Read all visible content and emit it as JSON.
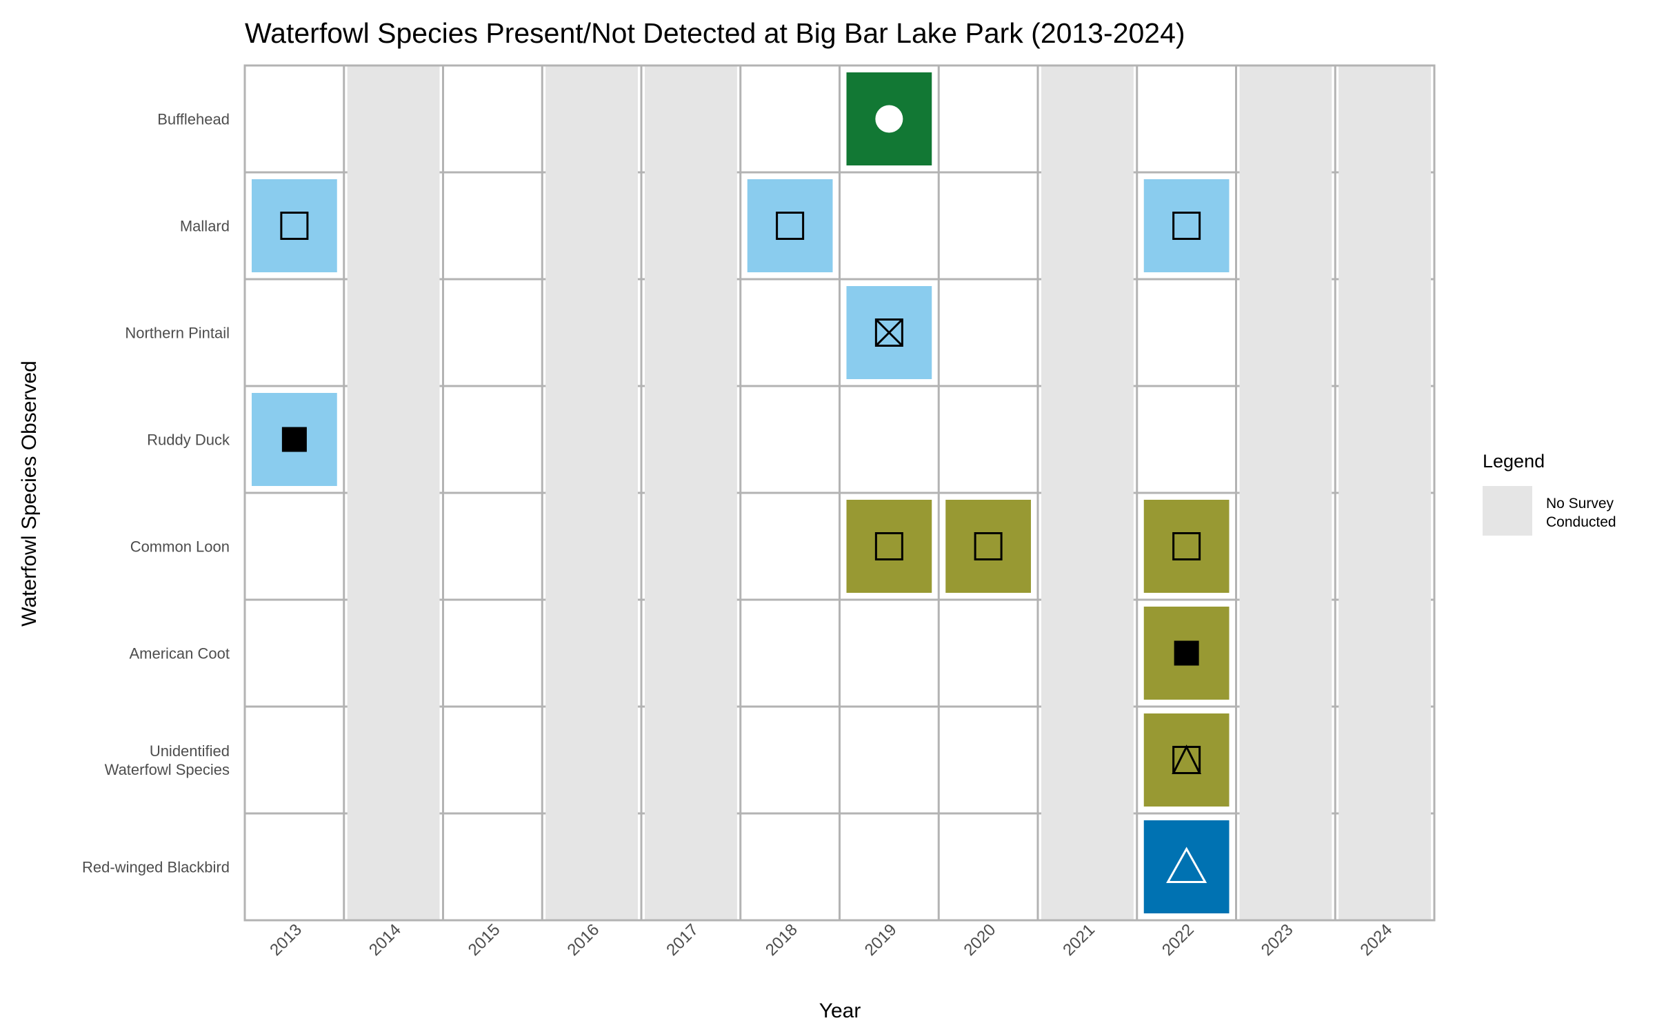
{
  "chart_data": {
    "type": "heatmap",
    "title": "Waterfowl Species Present/Not Detected at Big Bar Lake Park (2013-2024)",
    "xlabel": "Year",
    "ylabel": "Waterfowl Species Observed",
    "years": [
      "2013",
      "2014",
      "2015",
      "2016",
      "2017",
      "2018",
      "2019",
      "2020",
      "2021",
      "2022",
      "2023",
      "2024"
    ],
    "no_survey_years": [
      "2014",
      "2016",
      "2017",
      "2021",
      "2023",
      "2024"
    ],
    "species": [
      {
        "name": [
          "Bufflehead"
        ]
      },
      {
        "name": [
          "Mallard"
        ]
      },
      {
        "name": [
          "Northern Pintail"
        ]
      },
      {
        "name": [
          "Ruddy Duck"
        ]
      },
      {
        "name": [
          "Common Loon"
        ]
      },
      {
        "name": [
          "American Coot"
        ]
      },
      {
        "name": [
          "Unidentified",
          "Waterfowl Species"
        ]
      },
      {
        "name": [
          "Red-winged Blackbird"
        ]
      }
    ],
    "observations": [
      {
        "species": 0,
        "year": "2019",
        "color": "#127834",
        "marker": "circle-filled",
        "marker_color": "#ffffff"
      },
      {
        "species": 1,
        "year": "2013",
        "color": "#8ACCEE",
        "marker": "square-open",
        "marker_color": "#000000"
      },
      {
        "species": 1,
        "year": "2018",
        "color": "#8ACCEE",
        "marker": "square-open",
        "marker_color": "#000000"
      },
      {
        "species": 1,
        "year": "2022",
        "color": "#8ACCEE",
        "marker": "square-open",
        "marker_color": "#000000"
      },
      {
        "species": 2,
        "year": "2019",
        "color": "#8ACCEE",
        "marker": "square-cross",
        "marker_color": "#000000"
      },
      {
        "species": 3,
        "year": "2013",
        "color": "#8ACCEE",
        "marker": "square-filled",
        "marker_color": "#000000"
      },
      {
        "species": 4,
        "year": "2019",
        "color": "#989933",
        "marker": "square-open",
        "marker_color": "#000000"
      },
      {
        "species": 4,
        "year": "2020",
        "color": "#989933",
        "marker": "square-open",
        "marker_color": "#000000"
      },
      {
        "species": 4,
        "year": "2022",
        "color": "#989933",
        "marker": "square-open",
        "marker_color": "#000000"
      },
      {
        "species": 5,
        "year": "2022",
        "color": "#989933",
        "marker": "square-filled",
        "marker_color": "#000000"
      },
      {
        "species": 6,
        "year": "2022",
        "color": "#989933",
        "marker": "square-triangle",
        "marker_color": "#000000"
      },
      {
        "species": 7,
        "year": "2022",
        "color": "#0072B2",
        "marker": "triangle-open",
        "marker_color": "#ffffff"
      }
    ],
    "no_survey_color": "#E5E5E5",
    "legend": {
      "title": "Legend",
      "entries": [
        {
          "label": [
            "No Survey",
            "Conducted"
          ],
          "color": "#E5E5E5"
        }
      ],
      "position": "right"
    }
  }
}
